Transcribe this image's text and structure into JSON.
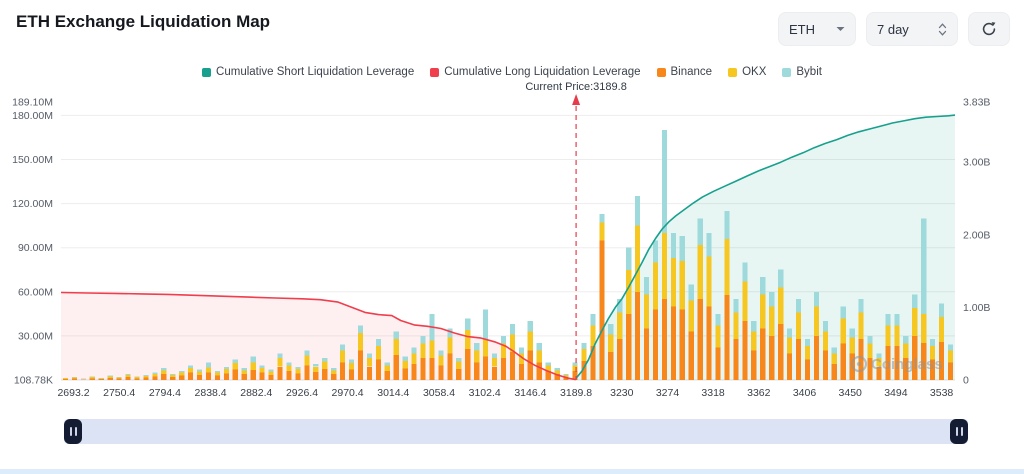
{
  "header": {
    "title": "ETH Exchange Liquidation Map"
  },
  "controls": {
    "symbol": {
      "value": "ETH"
    },
    "range": {
      "value": "7 day"
    }
  },
  "watermark": {
    "label": "Coinglass"
  },
  "icons": {
    "chevron_down": "small down triangle",
    "stepper": "up and down chevrons",
    "refresh": "circular arrow",
    "slider_handle": "pause bars"
  },
  "chart_data": {
    "type": "mixed-bar-line",
    "current_price": {
      "label": "Current Price:3189.8",
      "value": 3189.8,
      "x_label_index": 11
    },
    "x_labels": [
      "2693.2",
      "2750.4",
      "2794.4",
      "2838.4",
      "2882.4",
      "2926.4",
      "2970.4",
      "3014.4",
      "3058.4",
      "3102.4",
      "3146.4",
      "3189.8",
      "3230",
      "3274",
      "3318",
      "3362",
      "3406",
      "3450",
      "3494",
      "3538"
    ],
    "left_axis": {
      "unit": "M",
      "max": 189.1,
      "ticks": [
        {
          "label": "189.10M",
          "value": 189.1
        },
        {
          "label": "180.00M",
          "value": 180
        },
        {
          "label": "150.00M",
          "value": 150
        },
        {
          "label": "120.00M",
          "value": 120
        },
        {
          "label": "90.00M",
          "value": 90
        },
        {
          "label": "60.00M",
          "value": 60
        },
        {
          "label": "30.00M",
          "value": 30
        },
        {
          "label": "108.78K",
          "value": 0.10878
        }
      ]
    },
    "right_axis": {
      "unit": "B",
      "max": 3.83,
      "ticks": [
        {
          "label": "3.83B",
          "value": 3.83
        },
        {
          "label": "3.00B",
          "value": 3
        },
        {
          "label": "2.00B",
          "value": 2
        },
        {
          "label": "1.00B",
          "value": 1
        },
        {
          "label": "0",
          "value": 0
        }
      ]
    },
    "legend": [
      {
        "label": "Cumulative Short Liquidation Leverage",
        "color": "#17a08e"
      },
      {
        "label": "Cumulative Long Liquidation Leverage",
        "color": "#f03e4d"
      },
      {
        "label": "Binance",
        "color": "#f7861b"
      },
      {
        "label": "OKX",
        "color": "#f6c721"
      },
      {
        "label": "Bybit",
        "color": "#9ed9dc"
      }
    ],
    "bars": {
      "series_names": [
        "Binance",
        "OKX",
        "Bybit"
      ],
      "colors": [
        "#f7861b",
        "#f6c721",
        "#9ed9dc"
      ],
      "unit": "M",
      "stacks": [
        [
          0.7,
          0.5,
          0.3
        ],
        [
          1,
          0.6,
          0.4
        ],
        [
          0.5,
          0.3,
          0.2
        ],
        [
          1.2,
          0.8,
          0.5
        ],
        [
          0.6,
          0.4,
          0.2
        ],
        [
          1.5,
          1,
          0.5
        ],
        [
          1,
          0.6,
          0.4
        ],
        [
          2,
          1.3,
          0.7
        ],
        [
          1.2,
          0.8,
          0.5
        ],
        [
          1.8,
          1.1,
          0.6
        ],
        [
          2.5,
          1.6,
          0.9
        ],
        [
          4,
          2.5,
          1.5
        ],
        [
          2,
          1.3,
          0.7
        ],
        [
          3,
          2,
          1
        ],
        [
          5,
          3,
          2
        ],
        [
          3.5,
          2.2,
          1.3
        ],
        [
          5,
          3.5,
          3.5
        ],
        [
          3,
          2,
          1
        ],
        [
          4.5,
          3,
          1.5
        ],
        [
          7,
          4.5,
          2.5
        ],
        [
          4,
          2.5,
          1.5
        ],
        [
          7,
          5,
          4
        ],
        [
          5,
          3,
          2
        ],
        [
          3.5,
          2.2,
          1.3
        ],
        [
          9,
          6,
          3
        ],
        [
          6,
          4,
          2
        ],
        [
          4.5,
          3,
          1.5
        ],
        [
          10,
          6.5,
          3.5
        ],
        [
          5.5,
          3.5,
          2
        ],
        [
          7.5,
          5,
          2.5
        ],
        [
          4,
          2.5,
          1.5
        ],
        [
          12,
          8,
          4
        ],
        [
          7,
          4.5,
          2.5
        ],
        [
          20,
          12,
          5
        ],
        [
          9,
          6,
          3
        ],
        [
          14,
          9,
          5
        ],
        [
          6,
          4,
          2
        ],
        [
          17,
          11,
          5
        ],
        [
          8,
          5,
          3
        ],
        [
          11,
          7,
          4
        ],
        [
          15,
          10,
          5
        ],
        [
          15,
          12,
          18
        ],
        [
          10,
          6.5,
          3.5
        ],
        [
          18,
          11,
          6
        ],
        [
          7.5,
          5,
          2.5
        ],
        [
          21,
          13,
          8
        ],
        [
          12,
          8,
          5
        ],
        [
          16,
          12,
          20
        ],
        [
          9,
          6,
          3
        ],
        [
          15,
          10,
          5
        ],
        [
          19,
          12,
          7
        ],
        [
          11,
          7,
          4
        ],
        [
          20,
          13,
          7
        ],
        [
          12,
          8,
          5
        ],
        [
          6,
          4,
          2
        ],
        [
          4,
          2.5,
          1.5
        ],
        [
          2,
          1.3,
          0.7
        ],
        [
          6,
          4,
          2
        ],
        [
          13,
          8,
          4
        ],
        [
          23,
          14,
          8
        ],
        [
          95,
          12,
          6
        ],
        [
          19,
          12,
          7
        ],
        [
          28,
          18,
          9
        ],
        [
          45,
          30,
          15
        ],
        [
          60,
          45,
          20
        ],
        [
          35,
          23,
          12
        ],
        [
          48,
          32,
          15
        ],
        [
          55,
          45,
          70
        ],
        [
          50,
          33,
          17
        ],
        [
          48,
          33,
          17
        ],
        [
          33,
          21,
          11
        ],
        [
          55,
          37,
          18
        ],
        [
          50,
          34,
          16
        ],
        [
          22,
          15,
          8
        ],
        [
          58,
          38,
          19
        ],
        [
          28,
          18,
          9
        ],
        [
          40,
          27,
          13
        ],
        [
          20,
          13,
          7
        ],
        [
          35,
          23,
          12
        ],
        [
          30,
          20,
          10
        ],
        [
          38,
          25,
          12
        ],
        [
          18,
          11,
          6
        ],
        [
          28,
          18,
          9
        ],
        [
          14,
          9,
          5
        ],
        [
          30,
          20,
          10
        ],
        [
          20,
          13,
          7
        ],
        [
          11,
          7,
          4
        ],
        [
          25,
          17,
          8
        ],
        [
          18,
          11,
          6
        ],
        [
          28,
          18,
          9
        ],
        [
          15,
          10,
          5
        ],
        [
          9,
          6,
          3
        ],
        [
          23,
          14,
          8
        ],
        [
          23,
          14,
          8
        ],
        [
          15,
          10,
          5
        ],
        [
          30,
          19,
          9
        ],
        [
          25,
          20,
          65
        ],
        [
          14,
          9,
          5
        ],
        [
          26,
          17,
          9
        ],
        [
          12,
          8,
          4
        ]
      ]
    },
    "long_series": {
      "name": "Cumulative Long Liquidation Leverage",
      "color": "#f03e4d",
      "fill": "rgba(240,62,77,0.08)",
      "axis": "left",
      "unit": "M",
      "points": [
        [
          0,
          59.5
        ],
        [
          0.6,
          59.2
        ],
        [
          1.2,
          58.9
        ],
        [
          1.8,
          58.6
        ],
        [
          2.4,
          58.2
        ],
        [
          3.0,
          57.6
        ],
        [
          3.6,
          57.0
        ],
        [
          4.2,
          56.4
        ],
        [
          4.8,
          55.8
        ],
        [
          5.4,
          55.2
        ],
        [
          5.8,
          54.6
        ],
        [
          6.2,
          53.0
        ],
        [
          6.5,
          49.5
        ],
        [
          6.8,
          46.0
        ],
        [
          7.1,
          44.5
        ],
        [
          7.4,
          43.8
        ],
        [
          7.6,
          40.5
        ],
        [
          7.9,
          37.5
        ],
        [
          8.2,
          36.5
        ],
        [
          8.5,
          35.0
        ],
        [
          8.8,
          32.0
        ],
        [
          9.1,
          29.5
        ],
        [
          9.4,
          28.5
        ],
        [
          9.7,
          26.0
        ],
        [
          9.95,
          23.0
        ],
        [
          10.15,
          19.0
        ],
        [
          10.35,
          14.5
        ],
        [
          10.6,
          10.0
        ],
        [
          10.85,
          6.5
        ],
        [
          11.1,
          3.5
        ],
        [
          11.35,
          1.2
        ],
        [
          11.52,
          0.3
        ]
      ]
    },
    "short_series": {
      "name": "Cumulative Short Liquidation Leverage",
      "color": "#17a08e",
      "fill": "rgba(23,160,142,0.10)",
      "axis": "right",
      "unit": "B",
      "points": [
        [
          11.52,
          0.02
        ],
        [
          11.65,
          0.12
        ],
        [
          11.8,
          0.28
        ],
        [
          11.95,
          0.5
        ],
        [
          12.1,
          0.68
        ],
        [
          12.25,
          0.85
        ],
        [
          12.4,
          1.0
        ],
        [
          12.55,
          1.12
        ],
        [
          12.7,
          1.28
        ],
        [
          12.85,
          1.45
        ],
        [
          13.0,
          1.62
        ],
        [
          13.15,
          1.8
        ],
        [
          13.3,
          1.95
        ],
        [
          13.45,
          2.08
        ],
        [
          13.6,
          2.18
        ],
        [
          13.75,
          2.26
        ],
        [
          13.95,
          2.35
        ],
        [
          14.15,
          2.44
        ],
        [
          14.35,
          2.52
        ],
        [
          14.6,
          2.6
        ],
        [
          14.85,
          2.67
        ],
        [
          15.1,
          2.74
        ],
        [
          15.35,
          2.81
        ],
        [
          15.6,
          2.88
        ],
        [
          15.85,
          2.94
        ],
        [
          16.1,
          3.0
        ],
        [
          16.35,
          3.07
        ],
        [
          16.6,
          3.13
        ],
        [
          16.85,
          3.2
        ],
        [
          17.1,
          3.26
        ],
        [
          17.35,
          3.31
        ],
        [
          17.6,
          3.37
        ],
        [
          17.85,
          3.42
        ],
        [
          18.1,
          3.46
        ],
        [
          18.35,
          3.5
        ],
        [
          18.6,
          3.54
        ],
        [
          18.85,
          3.57
        ],
        [
          19.1,
          3.6
        ],
        [
          19.35,
          3.62
        ],
        [
          19.6,
          3.63
        ],
        [
          19.85,
          3.64
        ],
        [
          20,
          3.65
        ]
      ]
    }
  }
}
